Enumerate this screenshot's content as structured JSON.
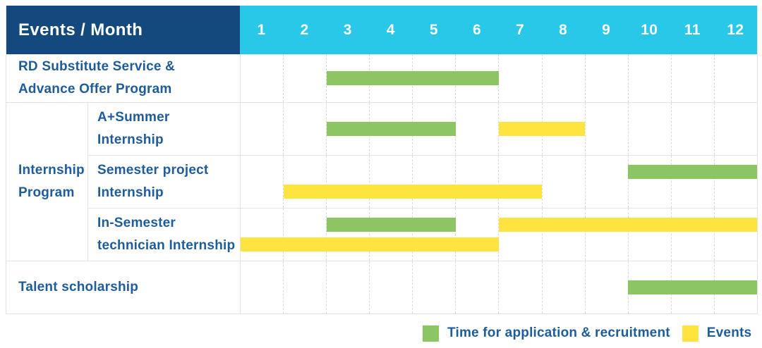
{
  "header": {
    "title": "Events / Month",
    "months": [
      "1",
      "2",
      "3",
      "4",
      "5",
      "6",
      "7",
      "8",
      "9",
      "10",
      "11",
      "12"
    ]
  },
  "colors": {
    "navy": "#14497E",
    "cyan": "#29C8E9",
    "green": "#8CC563",
    "yellow": "#FFE33E",
    "blue": "#1E5C9C",
    "grid": "#E3E3E3",
    "dash": "#D9D9D9"
  },
  "legend": [
    {
      "kind": "recruitment",
      "color": "#8CC563",
      "label": "Time for application & recruitment"
    },
    {
      "kind": "event",
      "color": "#FFE33E",
      "label": "Events"
    }
  ],
  "chart_data": {
    "type": "table",
    "subtype": "gantt",
    "title": "Events / Month",
    "x_axis": {
      "label": "Month",
      "ticks": [
        "1",
        "2",
        "3",
        "4",
        "5",
        "6",
        "7",
        "8",
        "9",
        "10",
        "11",
        "12"
      ],
      "range": [
        1,
        12
      ]
    },
    "grid": "vertical-dashed",
    "legend_position": "bottom-right",
    "group_label": "Internship Program",
    "group_label_lines": [
      "Internship",
      "Program"
    ],
    "rows": [
      {
        "id": "rd",
        "group": null,
        "label": "RD Substitute Service & Advance Offer Program",
        "label_lines": [
          "RD Substitute Service &",
          "Advance Offer Program"
        ],
        "lanes": 1,
        "bars": [
          {
            "kind": "recruitment",
            "start": 3,
            "end": 6,
            "lane": 0
          }
        ]
      },
      {
        "id": "aplus",
        "group": "Internship Program",
        "label": "A+Summer Internship",
        "label_lines": [
          "A+Summer",
          "Internship"
        ],
        "lanes": 1,
        "bars": [
          {
            "kind": "recruitment",
            "start": 3,
            "end": 5,
            "lane": 0
          },
          {
            "kind": "event",
            "start": 7,
            "end": 8,
            "lane": 0
          }
        ]
      },
      {
        "id": "semester",
        "group": "Internship Program",
        "label": "Semester project Internship",
        "label_lines": [
          "Semester project",
          "Internship"
        ],
        "lanes": 2,
        "bars": [
          {
            "kind": "recruitment",
            "start": 10,
            "end": 12,
            "lane": 0
          },
          {
            "kind": "event",
            "start": 2,
            "end": 7,
            "lane": 1
          }
        ]
      },
      {
        "id": "insem",
        "group": "Internship Program",
        "label": "In-Semester technician Internship",
        "label_lines": [
          "In-Semester",
          "technician Internship"
        ],
        "lanes": 2,
        "bars": [
          {
            "kind": "recruitment",
            "start": 3,
            "end": 5,
            "lane": 0
          },
          {
            "kind": "event",
            "start": 7,
            "end": 12,
            "lane": 0
          },
          {
            "kind": "event",
            "start": 1,
            "end": 6,
            "lane": 1
          }
        ]
      },
      {
        "id": "talent",
        "group": null,
        "label": "Talent scholarship",
        "label_lines": [
          "Talent scholarship"
        ],
        "lanes": 1,
        "bars": [
          {
            "kind": "recruitment",
            "start": 10,
            "end": 12,
            "lane": 0
          }
        ]
      }
    ]
  }
}
